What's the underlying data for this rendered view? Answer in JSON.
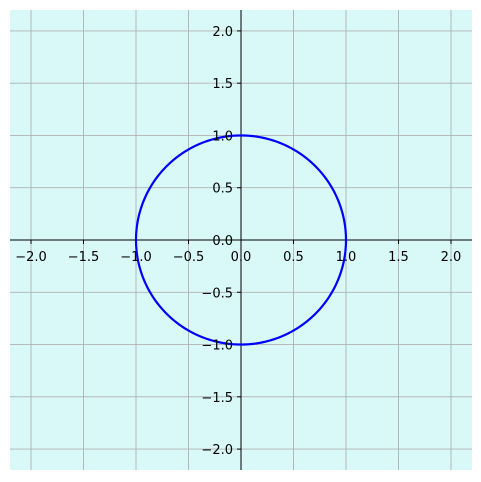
{
  "chart_data": {
    "type": "line",
    "title": "",
    "xlabel": "",
    "ylabel": "",
    "xlim": [
      -2.2,
      2.2
    ],
    "ylim": [
      -2.2,
      2.2
    ],
    "grid": true,
    "spines": "centered",
    "x_ticks": [
      "−2.0",
      "−1.5",
      "−1.0",
      "−0.5",
      "0.0",
      "0.5",
      "1.0",
      "1.5",
      "2.0"
    ],
    "y_ticks": [
      "−2.0",
      "−1.5",
      "−1.0",
      "−0.5",
      "0.0",
      "0.5",
      "1.0",
      "1.5",
      "2.0"
    ],
    "x_tick_values": [
      -2.0,
      -1.5,
      -1.0,
      -0.5,
      0.0,
      0.5,
      1.0,
      1.5,
      2.0
    ],
    "y_tick_values": [
      -2.0,
      -1.5,
      -1.0,
      -0.5,
      0.0,
      0.5,
      1.0,
      1.5,
      2.0
    ],
    "series": [
      {
        "shape": "circle",
        "center": [
          0,
          0
        ],
        "radius": 1.0,
        "color": "#0000ff"
      }
    ],
    "colors": {
      "background": "#d9f9f9",
      "grid": "#b0b0b0",
      "axes": "#000000",
      "curve": "#0000ff"
    }
  }
}
